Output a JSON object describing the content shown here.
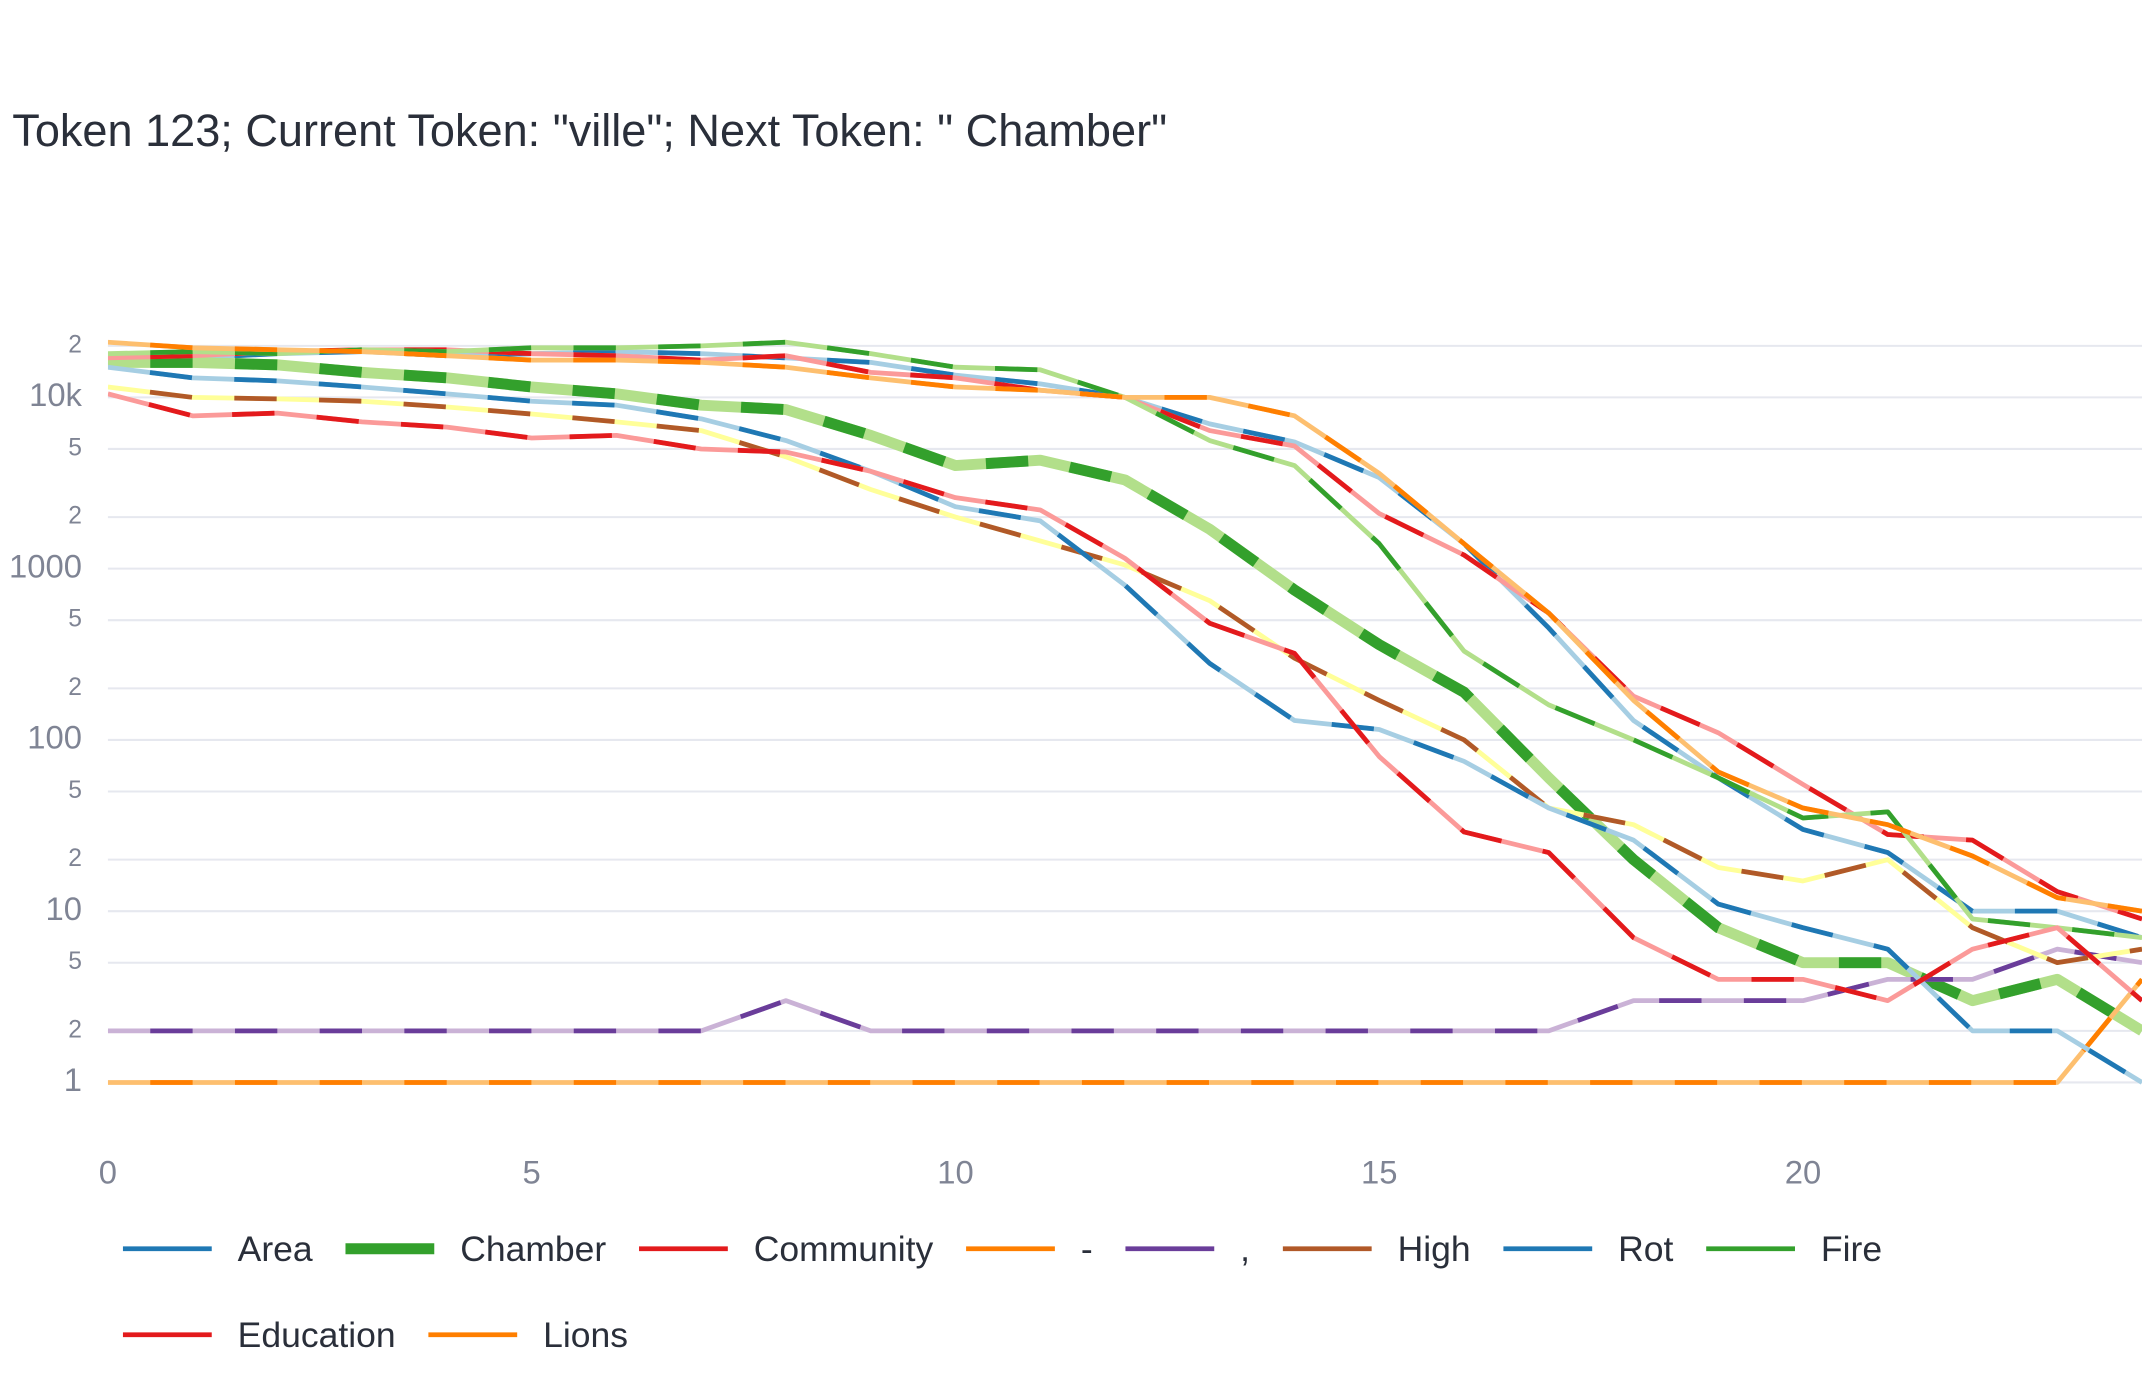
{
  "chart_data": {
    "type": "line",
    "title": "Token 123; Current Token: \"ville\"; Next Token: \" Chamber\"",
    "log_y": true,
    "grid": true,
    "legend_position": "bottom",
    "x": [
      0,
      1,
      2,
      3,
      4,
      5,
      6,
      7,
      8,
      9,
      10,
      11,
      12,
      13,
      14,
      15,
      16,
      17,
      18,
      19,
      20,
      21,
      22,
      23,
      24
    ],
    "xlim": [
      0,
      24
    ],
    "xticks": [
      0,
      5,
      10,
      15,
      20
    ],
    "ylim": [
      0.5,
      30000
    ],
    "yticks": [
      1,
      2,
      5,
      10,
      {
        "value": 20,
        "label": "2"
      },
      {
        "value": 50,
        "label": "5"
      },
      100,
      {
        "value": 200,
        "label": "2"
      },
      {
        "value": 500,
        "label": "5"
      },
      1000,
      {
        "value": 2000,
        "label": "2"
      },
      {
        "value": 5000,
        "label": "5"
      },
      {
        "value": 10000,
        "label": "10k"
      },
      {
        "value": 20000,
        "label": "2"
      }
    ],
    "series": [
      {
        "name": "Area",
        "color": "#1f78b4",
        "alt_color": "#a6cee3",
        "width": 3.5,
        "values": [
          15500,
          17000,
          18000,
          18500,
          17500,
          18000,
          18500,
          18000,
          17000,
          16000,
          13500,
          12000,
          10000,
          7000,
          5500,
          3400,
          1400,
          450,
          130,
          60,
          30,
          22,
          10,
          10,
          7
        ]
      },
      {
        "name": "Chamber",
        "color": "#33a02c",
        "alt_color": "#b2df8a",
        "width": 8,
        "values": [
          16000,
          16000,
          15500,
          14000,
          13000,
          11500,
          10500,
          9000,
          8500,
          6000,
          4000,
          4300,
          3300,
          1700,
          750,
          360,
          190,
          60,
          20,
          8,
          5,
          5,
          3,
          4,
          2
        ]
      },
      {
        "name": "Community",
        "color": "#e31a1c",
        "alt_color": "#fb9a99",
        "width": 3.5,
        "values": [
          17000,
          17500,
          18500,
          19000,
          19000,
          18000,
          17500,
          16500,
          17500,
          14000,
          13000,
          11000,
          10000,
          6400,
          5200,
          2100,
          1200,
          550,
          180,
          110,
          55,
          28,
          26,
          13,
          9
        ]
      },
      {
        "name": "-",
        "color": "#ff7f00",
        "alt_color": "#fdbf6f",
        "width": 3.5,
        "values": [
          1,
          1,
          1,
          1,
          1,
          1,
          1,
          1,
          1,
          1,
          1,
          1,
          1,
          1,
          1,
          1,
          1,
          1,
          1,
          1,
          1,
          1,
          1,
          1,
          4
        ]
      },
      {
        "name": ",",
        "color": "#6a3d9a",
        "alt_color": "#cab2d6",
        "width": 3.5,
        "values": [
          2,
          2,
          2,
          2,
          2,
          2,
          2,
          2,
          3,
          2,
          2,
          2,
          2,
          2,
          2,
          2,
          2,
          2,
          3,
          3,
          3,
          4,
          4,
          6,
          5
        ]
      },
      {
        "name": "High",
        "color": "#b15928",
        "alt_color": "#ffff99",
        "width": 3.5,
        "values": [
          11500,
          10000,
          9800,
          9500,
          8800,
          8000,
          7200,
          6400,
          4500,
          2900,
          2000,
          1450,
          1050,
          650,
          300,
          170,
          100,
          40,
          32,
          18,
          15,
          20,
          8,
          5,
          6
        ]
      },
      {
        "name": "Rot",
        "color": "#1f78b4",
        "alt_color": "#a6cee3",
        "width": 3.5,
        "values": [
          15000,
          13000,
          12500,
          11500,
          10500,
          9500,
          9000,
          7500,
          5600,
          3700,
          2300,
          1900,
          800,
          280,
          130,
          115,
          75,
          40,
          26,
          11,
          8,
          6,
          2,
          2,
          1
        ]
      },
      {
        "name": "Fire",
        "color": "#33a02c",
        "alt_color": "#b2df8a",
        "width": 3.5,
        "values": [
          18000,
          18500,
          18000,
          19000,
          18500,
          19500,
          19500,
          20000,
          21000,
          18000,
          15000,
          14500,
          10000,
          5600,
          4000,
          1400,
          330,
          160,
          100,
          60,
          35,
          38,
          9,
          8,
          7
        ]
      },
      {
        "name": "Education",
        "color": "#e31a1c",
        "alt_color": "#fb9a99",
        "width": 3.5,
        "values": [
          10500,
          7800,
          8100,
          7200,
          6700,
          5800,
          6000,
          5000,
          4800,
          3700,
          2600,
          2200,
          1150,
          480,
          320,
          80,
          29,
          22,
          7,
          4,
          4,
          3,
          6,
          8,
          3
        ]
      },
      {
        "name": "Lions",
        "color": "#ff7f00",
        "alt_color": "#fdbf6f",
        "width": 3.5,
        "values": [
          21000,
          19500,
          19000,
          18500,
          17500,
          16500,
          16500,
          16000,
          15000,
          13000,
          11500,
          11000,
          10000,
          10000,
          7800,
          3600,
          1400,
          550,
          170,
          65,
          40,
          32,
          21,
          12,
          10
        ]
      }
    ]
  }
}
